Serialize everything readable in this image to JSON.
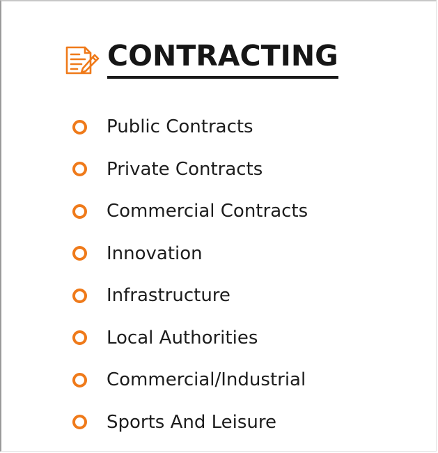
{
  "colors": {
    "accent": "#ef7a1a",
    "text": "#1d1d1d",
    "background": "#ffffff"
  },
  "header": {
    "icon": "contract-document-pen-icon",
    "title": "CONTRACTING"
  },
  "items": [
    {
      "label": "Public Contracts"
    },
    {
      "label": "Private Contracts"
    },
    {
      "label": "Commercial Contracts"
    },
    {
      "label": "Innovation"
    },
    {
      "label": "Infrastructure"
    },
    {
      "label": "Local Authorities"
    },
    {
      "label": "Commercial/Industrial"
    },
    {
      "label": "Sports And Leisure"
    }
  ]
}
